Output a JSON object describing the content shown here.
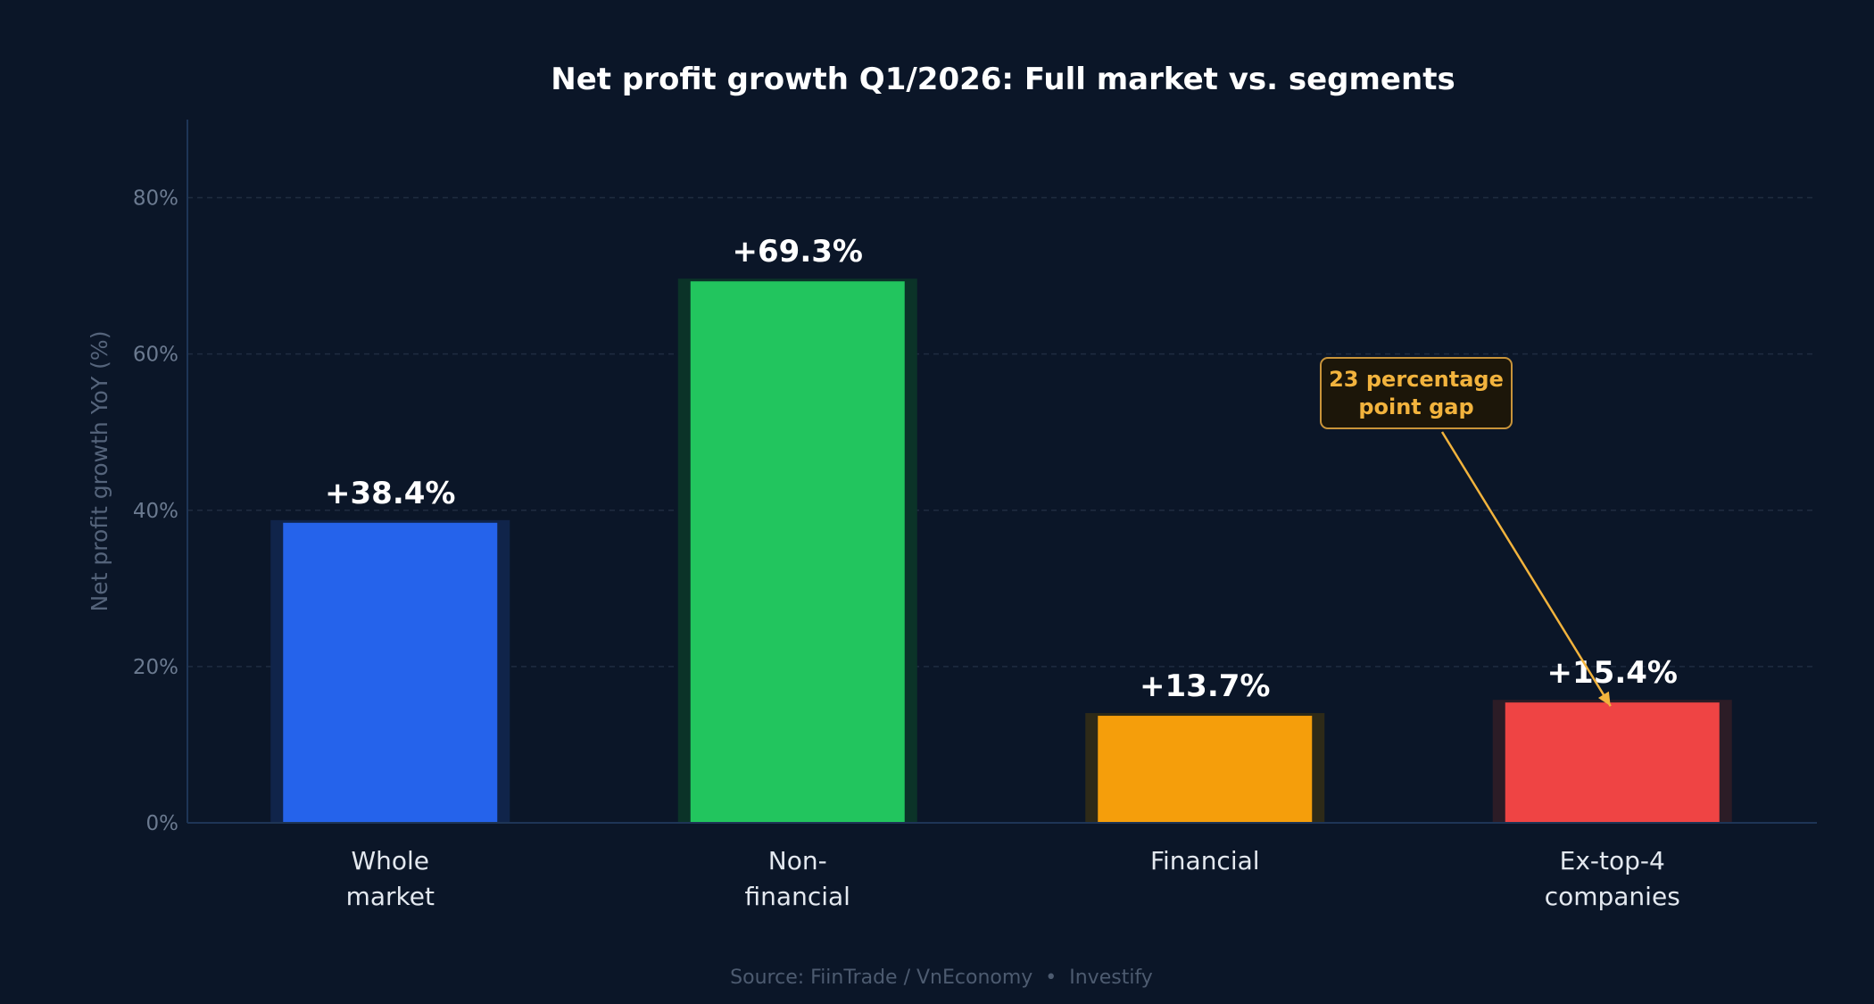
{
  "chart_data": {
    "type": "bar",
    "title": "Net profit growth Q1/2026: Full market vs. segments",
    "ylabel": "Net profit growth YoY (%)",
    "xlabel": "",
    "ylim": [
      0,
      90
    ],
    "yticks": [
      0,
      20,
      40,
      60,
      80
    ],
    "ytick_labels": [
      "0%",
      "20%",
      "40%",
      "60%",
      "80%"
    ],
    "grid": true,
    "categories": [
      [
        "Whole",
        "market"
      ],
      [
        "Non-",
        "financial"
      ],
      [
        "Financial"
      ],
      [
        "Ex-top-4",
        "companies"
      ]
    ],
    "values": [
      38.4,
      69.3,
      13.7,
      15.4
    ],
    "value_labels": [
      "+38.4%",
      "+69.3%",
      "+13.7%",
      "+15.4%"
    ],
    "colors": [
      "#2563eb",
      "#22c55e",
      "#f59e0b",
      "#ef4444"
    ],
    "glow_colors": [
      "#10244a",
      "#0b3328",
      "#2e2a18",
      "#2c1c26"
    ],
    "annotation": {
      "lines": [
        "23 percentage",
        "point gap"
      ],
      "color": "#f2b33d",
      "target_category_index": 3
    },
    "source": "Source: FiinTrade / VnEconomy  •  Investify"
  },
  "colors": {
    "background": "#0b1628",
    "grid": "#1f2c40",
    "axis": "#1e3556"
  }
}
